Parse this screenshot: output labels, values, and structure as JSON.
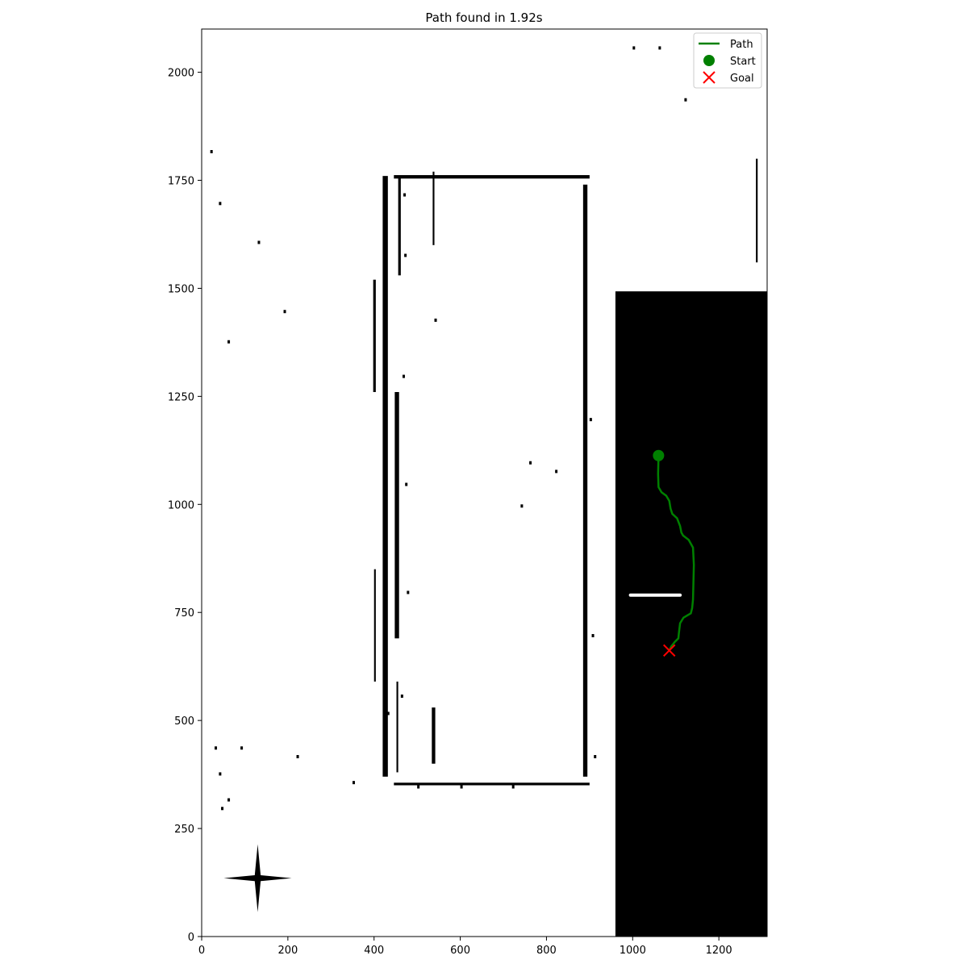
{
  "chart_data": {
    "type": "line",
    "title": "Path found in 1.92s",
    "xlabel": "",
    "ylabel": "",
    "xlim": [
      0,
      1312
    ],
    "ylim": [
      0,
      2100
    ],
    "xticks": [
      0,
      200,
      400,
      600,
      800,
      1000,
      1200
    ],
    "yticks": [
      0,
      250,
      500,
      750,
      1000,
      1250,
      1500,
      1750,
      2000
    ],
    "grid": false,
    "legend": {
      "placement": "top-right",
      "entries": [
        {
          "label": "Path",
          "marker": "line",
          "color": "#008000"
        },
        {
          "label": "Start",
          "marker": "circle",
          "color": "#008000"
        },
        {
          "label": "Goal",
          "marker": "x",
          "color": "#ff0000"
        }
      ]
    },
    "series": [
      {
        "name": "Path",
        "color": "#008000",
        "x": [
          1060,
          1059,
          1060,
          1067,
          1078,
          1085,
          1088,
          1092,
          1103,
          1110,
          1113,
          1117,
          1130,
          1140,
          1142,
          1141,
          1140,
          1138,
          1135,
          1118,
          1110,
          1107,
          1106,
          1098,
          1090,
          1085
        ],
        "y": [
          1113,
          1070,
          1040,
          1028,
          1020,
          1008,
          990,
          978,
          968,
          950,
          935,
          928,
          918,
          900,
          860,
          820,
          780,
          760,
          748,
          738,
          725,
          700,
          690,
          682,
          672,
          662
        ]
      }
    ],
    "start": {
      "x": 1060,
      "y": 1113,
      "color": "#008000"
    },
    "goal": {
      "x": 1085,
      "y": 662,
      "color": "#ff0000"
    },
    "map": {
      "free_color": "#ffffff",
      "obstacle_color": "#000000",
      "unknown_region": {
        "x": [
          960,
          1312
        ],
        "y": [
          0,
          1493
        ],
        "color": "#000000"
      },
      "marker_bar": {
        "x": [
          995,
          1110
        ],
        "y": 790,
        "color": "#ffffff"
      },
      "walls": [
        {
          "x": [
            420,
            432
          ],
          "y": [
            370,
            1760
          ]
        },
        {
          "x": [
            885,
            895
          ],
          "y": [
            370,
            1740
          ]
        },
        {
          "x": [
            456,
            462
          ],
          "y": [
            1530,
            1760
          ]
        },
        {
          "x": [
            448,
            458
          ],
          "y": [
            690,
            1260
          ]
        },
        {
          "x": [
            398,
            404
          ],
          "y": [
            1260,
            1520
          ]
        },
        {
          "x": [
            534,
            542
          ],
          "y": [
            400,
            530
          ]
        },
        {
          "x": [
            452,
            456
          ],
          "y": [
            380,
            590
          ]
        },
        {
          "x": [
            536,
            540
          ],
          "y": [
            1600,
            1770
          ]
        },
        {
          "x": [
            446,
            900
          ],
          "y": [
            1754,
            1762
          ]
        },
        {
          "x": [
            446,
            900
          ],
          "y": [
            350,
            356
          ]
        },
        {
          "x": [
            400,
            404
          ],
          "y": [
            590,
            850
          ]
        },
        {
          "x": [
            1286,
            1290
          ],
          "y": [
            1560,
            1800
          ]
        }
      ],
      "compass_rose": {
        "x": 130,
        "y": 135
      }
    }
  }
}
